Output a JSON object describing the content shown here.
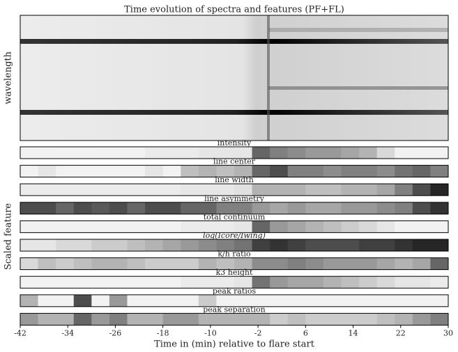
{
  "chart_data": {
    "type": "heatmap-strips",
    "title": "Time evolution of spectra and features (PF+FL)",
    "spectrum_ylabel": "wavelength",
    "ylabel": "Scaled feature",
    "xlabel": "Time in (min) relative to flare start",
    "xlim": [
      -42,
      30
    ],
    "xticks": [
      -42,
      -34,
      -26,
      -18,
      -10,
      -2,
      6,
      14,
      22,
      30
    ],
    "x": [
      -40.5,
      -37.5,
      -34.5,
      -31.5,
      -28.5,
      -25.5,
      -22.5,
      -19.5,
      -16.5,
      -13.5,
      -10.5,
      -7.5,
      -4.5,
      -1.5,
      1.5,
      4.5,
      7.5,
      10.5,
      13.5,
      16.5,
      19.5,
      22.5,
      25.5,
      28.5
    ],
    "series": [
      {
        "name": "intensity",
        "values": [
          0.05,
          0.05,
          0.05,
          0.05,
          0.05,
          0.05,
          0.05,
          0.08,
          0.08,
          0.08,
          0.1,
          0.1,
          0.1,
          0.6,
          0.5,
          0.45,
          0.4,
          0.4,
          0.35,
          0.3,
          0.15,
          0.05,
          0.05,
          0.05
        ]
      },
      {
        "name": "line center",
        "values": [
          0.05,
          0.1,
          0.05,
          0.05,
          0.05,
          0.05,
          0.05,
          0.1,
          0.05,
          0.25,
          0.3,
          0.25,
          0.3,
          0.6,
          0.7,
          0.5,
          0.5,
          0.45,
          0.5,
          0.5,
          0.45,
          0.55,
          0.6,
          0.5
        ]
      },
      {
        "name": "line width",
        "values": [
          0.08,
          0.08,
          0.08,
          0.08,
          0.08,
          0.08,
          0.08,
          0.08,
          0.08,
          0.1,
          0.1,
          0.1,
          0.12,
          0.3,
          0.3,
          0.3,
          0.25,
          0.25,
          0.3,
          0.3,
          0.35,
          0.5,
          0.7,
          0.85
        ]
      },
      {
        "name": "line asymmetry",
        "values": [
          0.7,
          0.7,
          0.6,
          0.7,
          0.65,
          0.7,
          0.6,
          0.7,
          0.7,
          0.6,
          0.6,
          0.5,
          0.5,
          0.4,
          0.35,
          0.4,
          0.35,
          0.35,
          0.4,
          0.4,
          0.45,
          0.5,
          0.7,
          0.8
        ]
      },
      {
        "name": "total continuum",
        "values": [
          0.05,
          0.05,
          0.05,
          0.05,
          0.05,
          0.05,
          0.05,
          0.05,
          0.05,
          0.08,
          0.08,
          0.08,
          0.1,
          0.6,
          0.4,
          0.35,
          0.3,
          0.25,
          0.2,
          0.15,
          0.1,
          0.05,
          0.05,
          0.05
        ]
      },
      {
        "name": "log(Icore/Iwing)",
        "values": [
          0.1,
          0.1,
          0.15,
          0.15,
          0.2,
          0.2,
          0.25,
          0.3,
          0.35,
          0.4,
          0.45,
          0.5,
          0.55,
          0.75,
          0.8,
          0.75,
          0.7,
          0.7,
          0.7,
          0.75,
          0.75,
          0.8,
          0.85,
          0.85
        ]
      },
      {
        "name": "k/h ratio",
        "values": [
          0.15,
          0.25,
          0.2,
          0.25,
          0.3,
          0.3,
          0.25,
          0.2,
          0.2,
          0.2,
          0.3,
          0.25,
          0.3,
          0.45,
          0.45,
          0.5,
          0.45,
          0.4,
          0.4,
          0.4,
          0.35,
          0.3,
          0.35,
          0.6
        ]
      },
      {
        "name": "k3 height",
        "values": [
          0.05,
          0.05,
          0.05,
          0.05,
          0.05,
          0.05,
          0.05,
          0.05,
          0.05,
          0.08,
          0.08,
          0.08,
          0.1,
          0.55,
          0.4,
          0.35,
          0.35,
          0.3,
          0.25,
          0.2,
          0.15,
          0.1,
          0.1,
          0.08
        ]
      },
      {
        "name": "peak ratios",
        "values": [
          0.3,
          0.05,
          0.05,
          0.7,
          0.05,
          0.4,
          0.05,
          0.05,
          0.05,
          0.05,
          0.2,
          0.05,
          0.05,
          0.05,
          0.05,
          0.05,
          0.05,
          0.05,
          0.05,
          0.05,
          0.05,
          0.05,
          0.05,
          0.05
        ]
      },
      {
        "name": "peak separation",
        "values": [
          0.4,
          0.3,
          0.3,
          0.6,
          0.4,
          0.5,
          0.3,
          0.3,
          0.4,
          0.4,
          0.3,
          0.3,
          0.3,
          0.3,
          0.2,
          0.25,
          0.2,
          0.2,
          0.2,
          0.2,
          0.25,
          0.3,
          0.4,
          0.5
        ]
      }
    ]
  }
}
